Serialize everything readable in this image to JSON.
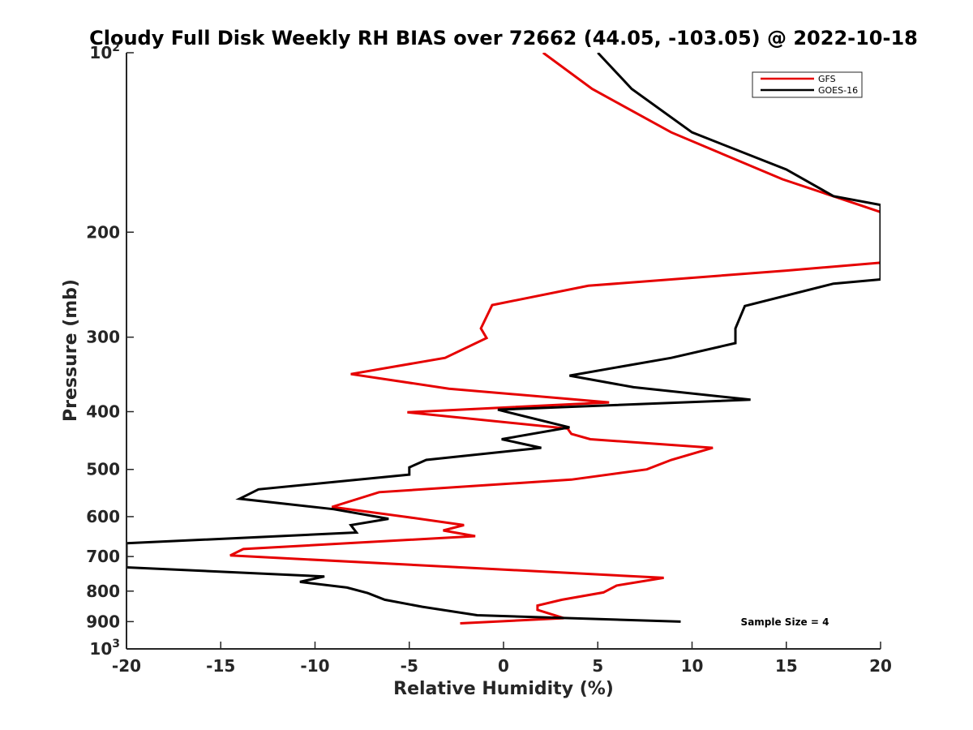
{
  "chart_data": {
    "type": "line",
    "title": "Cloudy Full Disk Weekly RH BIAS over 72662 (44.05, -103.05) @ 2022-10-18",
    "xlabel": "Relative Humidity (%)",
    "ylabel": "Pressure (mb)",
    "xlim": [
      -20,
      20
    ],
    "ylim": [
      100,
      1000
    ],
    "y_scale": "log",
    "y_reversed": true,
    "grid": false,
    "legend_position": "top-right",
    "x_ticks": [
      -20,
      -15,
      -10,
      -5,
      0,
      5,
      10,
      15,
      20
    ],
    "x_tick_labels": [
      "-20",
      "-15",
      "-10",
      "-5",
      "0",
      "5",
      "10",
      "15",
      "20"
    ],
    "y_ticks": [
      100,
      200,
      300,
      400,
      500,
      600,
      700,
      800,
      900,
      1000
    ],
    "y_tick_labels": [
      {
        "base": "10",
        "exp": "2"
      },
      {
        "base": "200",
        "exp": ""
      },
      {
        "base": "300",
        "exp": ""
      },
      {
        "base": "400",
        "exp": ""
      },
      {
        "base": "500",
        "exp": ""
      },
      {
        "base": "600",
        "exp": ""
      },
      {
        "base": "700",
        "exp": ""
      },
      {
        "base": "800",
        "exp": ""
      },
      {
        "base": "900",
        "exp": ""
      },
      {
        "base": "10",
        "exp": "3"
      }
    ],
    "annotation": "Sample Size = 4",
    "series": [
      {
        "name": "GFS",
        "color": "#e60000",
        "points": [
          [
            2.1,
            100
          ],
          [
            4.7,
            115
          ],
          [
            8.9,
            136
          ],
          [
            14.8,
            163
          ],
          [
            20,
            185
          ],
          [
            20,
            225
          ],
          [
            15,
            232
          ],
          [
            4.5,
            246
          ],
          [
            -0.6,
            265
          ],
          [
            -1.2,
            290
          ],
          [
            -0.9,
            301
          ],
          [
            -3.1,
            325
          ],
          [
            -8.1,
            346
          ],
          [
            -2.9,
            366
          ],
          [
            5.6,
            386
          ],
          [
            -5.1,
            401
          ],
          [
            3.4,
            427
          ],
          [
            3.6,
            436
          ],
          [
            4.6,
            445
          ],
          [
            11.1,
            460
          ],
          [
            8.9,
            482
          ],
          [
            7.6,
            500
          ],
          [
            3.6,
            520
          ],
          [
            -6.6,
            546
          ],
          [
            -9.1,
            578
          ],
          [
            -5.1,
            601
          ],
          [
            -2.1,
            620
          ],
          [
            -3.2,
            633
          ],
          [
            -1.5,
            647
          ],
          [
            -13.8,
            680
          ],
          [
            -14.5,
            697
          ],
          [
            8.5,
            760
          ],
          [
            6.0,
            783
          ],
          [
            5.3,
            804
          ],
          [
            3.1,
            827
          ],
          [
            1.8,
            846
          ],
          [
            1.8,
            860
          ],
          [
            3.2,
            888
          ],
          [
            -2.3,
            906
          ]
        ]
      },
      {
        "name": "GOES-16",
        "color": "#000000",
        "points": [
          [
            5.0,
            100
          ],
          [
            6.8,
            115
          ],
          [
            10.0,
            136
          ],
          [
            15.0,
            157
          ],
          [
            17.5,
            174
          ],
          [
            20,
            180
          ],
          [
            20,
            240
          ],
          [
            17.5,
            244
          ],
          [
            12.8,
            266
          ],
          [
            12.3,
            290
          ],
          [
            12.3,
            307
          ],
          [
            8.9,
            325
          ],
          [
            3.5,
            348
          ],
          [
            6.9,
            364
          ],
          [
            13.1,
            382
          ],
          [
            -0.3,
            397
          ],
          [
            3.5,
            425
          ],
          [
            -0.1,
            445
          ],
          [
            2.0,
            460
          ],
          [
            -4.1,
            482
          ],
          [
            -5.0,
            496
          ],
          [
            -5.0,
            510
          ],
          [
            -13.0,
            540
          ],
          [
            -14.0,
            560
          ],
          [
            -9.0,
            583
          ],
          [
            -6.1,
            605
          ],
          [
            -8.1,
            620
          ],
          [
            -7.8,
            638
          ],
          [
            -20,
            665
          ],
          [
            -20,
            730
          ],
          [
            -9.5,
            756
          ],
          [
            -10.8,
            772
          ],
          [
            -8.3,
            789
          ],
          [
            -7.2,
            806
          ],
          [
            -6.3,
            827
          ],
          [
            -4.3,
            850
          ],
          [
            -1.4,
            878
          ],
          [
            9.4,
            900
          ]
        ]
      }
    ]
  }
}
